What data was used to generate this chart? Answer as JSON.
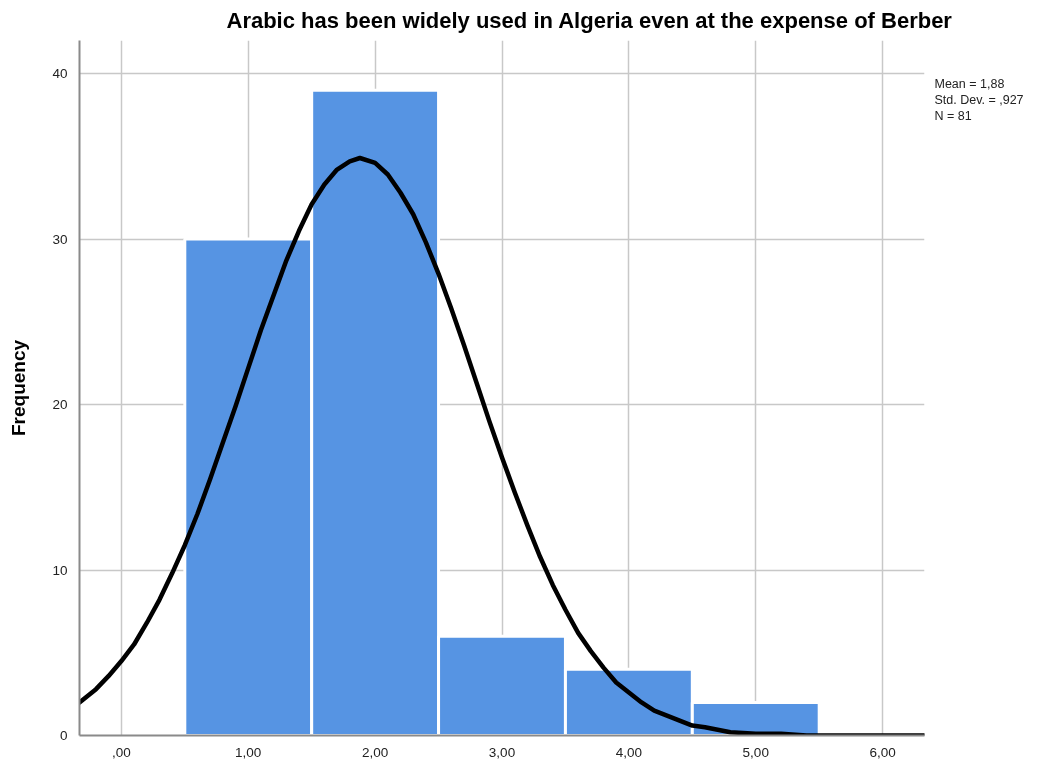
{
  "chart_data": {
    "type": "histogram",
    "title": "Arabic has been widely used in Algeria even at the expense of Berber",
    "ylabel": "Frequency",
    "bins": [
      0.5,
      1.5,
      2.5,
      3.5,
      4.5,
      5.5
    ],
    "values": [
      30,
      39,
      6,
      4,
      2
    ],
    "color": "#5694e3",
    "series": [
      {
        "type": "line",
        "color": "#000000",
        "x": [
          -0.33,
          -0.2,
          -0.1,
          0,
          0.1,
          0.2,
          0.3,
          0.4,
          0.5,
          0.6,
          0.7,
          0.8,
          0.9,
          1,
          1.1,
          1.2,
          1.3,
          1.4,
          1.5,
          1.6,
          1.7,
          1.8,
          1.88,
          2,
          2.1,
          2.2,
          2.3,
          2.4,
          2.5,
          2.6,
          2.7,
          2.8,
          2.9,
          3,
          3.1,
          3.2,
          3.3,
          3.4,
          3.5,
          3.6,
          3.7,
          3.8,
          3.9,
          4,
          4.1,
          4.2,
          4.3,
          4.4,
          4.5,
          4.6,
          4.8,
          5,
          5.2,
          5.4,
          5.8,
          6.33
        ],
        "values": [
          2.0,
          2.8,
          3.6,
          4.5,
          5.5,
          6.8,
          8.2,
          9.8,
          11.5,
          13.4,
          15.5,
          17.7,
          19.9,
          22.2,
          24.5,
          26.6,
          28.7,
          30.5,
          32.1,
          33.3,
          34.2,
          34.7,
          34.9,
          34.6,
          33.9,
          32.8,
          31.5,
          29.8,
          27.9,
          25.8,
          23.6,
          21.3,
          19.0,
          16.8,
          14.7,
          12.7,
          10.8,
          9.1,
          7.6,
          6.2,
          5.1,
          4.1,
          3.2,
          2.6,
          2.0,
          1.5,
          1.2,
          0.9,
          0.6,
          0.5,
          0.2,
          0.1,
          0.1,
          0,
          0,
          0
        ]
      }
    ],
    "xlim": [
      -0.33,
      6.33
    ],
    "ylim": [
      0,
      42
    ],
    "xticks": [
      {
        "value": 0,
        "label": ",00"
      },
      {
        "value": 1,
        "label": "1,00"
      },
      {
        "value": 2,
        "label": "2,00"
      },
      {
        "value": 3,
        "label": "3,00"
      },
      {
        "value": 4,
        "label": "4,00"
      },
      {
        "value": 5,
        "label": "5,00"
      },
      {
        "value": 6,
        "label": "6,00"
      }
    ],
    "yticks": [
      0,
      10,
      20,
      30,
      40
    ],
    "grid": true,
    "annotations": [
      "Mean = 1,88",
      "Std. Dev. = ,927",
      "N = 81"
    ]
  }
}
